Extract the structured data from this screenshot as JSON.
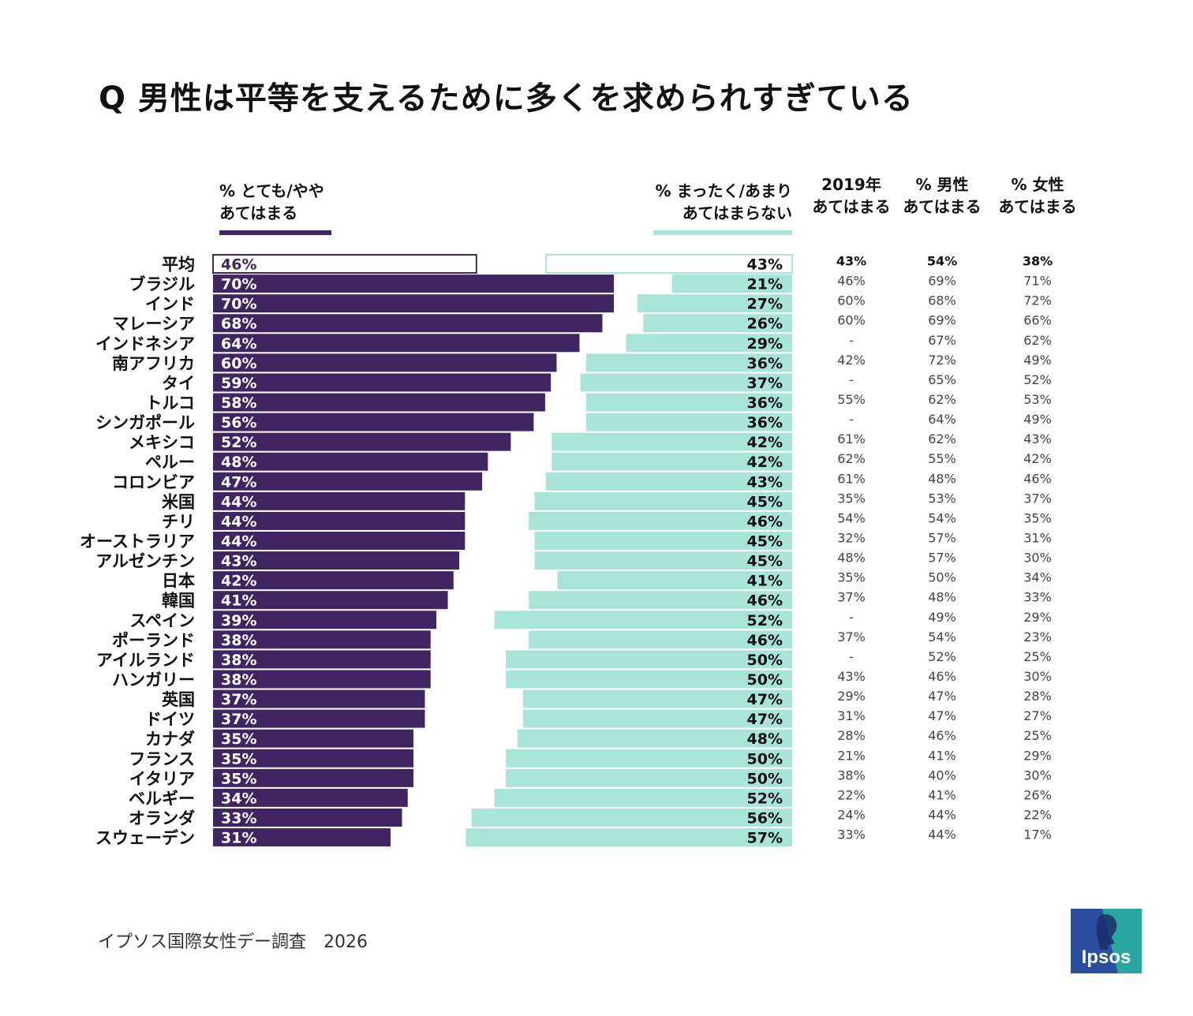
{
  "title": "Q 男性は平等を支えるために多くを求められすぎている",
  "legend": {
    "agree": "% とても/やや\nあてはまる",
    "disagree": "% まったく/あまり\nあてはまらない"
  },
  "columns": {
    "y2019": "2019年\nあてはまる",
    "men": "% 男性\nあてはまる",
    "women": "% 女性\nあてはまる"
  },
  "colors": {
    "agree": "#3f2561",
    "disagree": "#a9e4d9",
    "agree_label": "#ffffff",
    "disagree_label": "#111111",
    "table_text": "#444444"
  },
  "chart_data": {
    "type": "bar",
    "categories": [
      "平均",
      "ブラジル",
      "インド",
      "マレーシア",
      "インドネシア",
      "南アフリカ",
      "タイ",
      "トルコ",
      "シンガポール",
      "メキシコ",
      "ペルー",
      "コロンビア",
      "米国",
      "チリ",
      "オーストラリア",
      "アルゼンチン",
      "日本",
      "韓国",
      "スペイン",
      "ポーランド",
      "アイルランド",
      "ハンガリー",
      "英国",
      "ドイツ",
      "カナダ",
      "フランス",
      "イタリア",
      "ベルギー",
      "オランダ",
      "スウェーデン"
    ],
    "series": [
      {
        "name": "% とても/やや あてはまる",
        "values": [
          46,
          70,
          70,
          68,
          64,
          60,
          59,
          58,
          56,
          52,
          48,
          47,
          44,
          44,
          44,
          43,
          42,
          41,
          39,
          38,
          38,
          38,
          37,
          37,
          35,
          35,
          35,
          34,
          33,
          31
        ]
      },
      {
        "name": "% まったく/あまり あてはまらない",
        "values": [
          43,
          21,
          27,
          26,
          29,
          36,
          37,
          36,
          36,
          42,
          42,
          43,
          45,
          46,
          45,
          45,
          41,
          46,
          52,
          46,
          50,
          50,
          47,
          47,
          48,
          50,
          50,
          52,
          56,
          57
        ]
      }
    ],
    "value_labels": {
      "agree": [
        "46%",
        "70%",
        "70%",
        "68%",
        "64%",
        "60%",
        "59%",
        "58%",
        "56%",
        "52%",
        "48%",
        "47%",
        "44%",
        "44%",
        "44%",
        "43%",
        "42%",
        "41%",
        "39%",
        "38%",
        "38%",
        "38%",
        "37%",
        "37%",
        "35%",
        "35%",
        "35%",
        "34%",
        "33%",
        "31%"
      ],
      "disagree": [
        "43%",
        "21%",
        "27%",
        "26%",
        "29%",
        "36%",
        "37%",
        "36%",
        "36%",
        "42%",
        "42%",
        "43%",
        "45%",
        "46%",
        "45%",
        "45%",
        "41%",
        "46%",
        "52%",
        "46%",
        "50%",
        "50%",
        "47%",
        "47%",
        "48%",
        "50%",
        "50%",
        "52%",
        "56%",
        "57%"
      ]
    },
    "table": {
      "y2019": [
        "43%",
        "46%",
        "60%",
        "60%",
        "-",
        "42%",
        "-",
        "55%",
        "-",
        "61%",
        "62%",
        "61%",
        "35%",
        "54%",
        "32%",
        "48%",
        "35%",
        "37%",
        "-",
        "37%",
        "-",
        "43%",
        "29%",
        "31%",
        "28%",
        "21%",
        "38%",
        "22%",
        "24%",
        "33%"
      ],
      "men": [
        "54%",
        "69%",
        "68%",
        "69%",
        "67%",
        "72%",
        "65%",
        "62%",
        "64%",
        "62%",
        "55%",
        "48%",
        "53%",
        "54%",
        "57%",
        "57%",
        "50%",
        "48%",
        "49%",
        "54%",
        "52%",
        "46%",
        "47%",
        "47%",
        "46%",
        "41%",
        "40%",
        "41%",
        "44%",
        "44%"
      ],
      "women": [
        "38%",
        "71%",
        "72%",
        "66%",
        "62%",
        "49%",
        "52%",
        "53%",
        "49%",
        "43%",
        "42%",
        "46%",
        "37%",
        "35%",
        "31%",
        "30%",
        "34%",
        "33%",
        "29%",
        "23%",
        "25%",
        "30%",
        "28%",
        "27%",
        "25%",
        "29%",
        "30%",
        "26%",
        "22%",
        "17%"
      ]
    },
    "xlim": [
      0,
      70
    ],
    "grid": false,
    "legend_position": "top"
  },
  "source": "イプソス国際女性デー調査　2026",
  "logo": {
    "text": "Ipsos"
  }
}
